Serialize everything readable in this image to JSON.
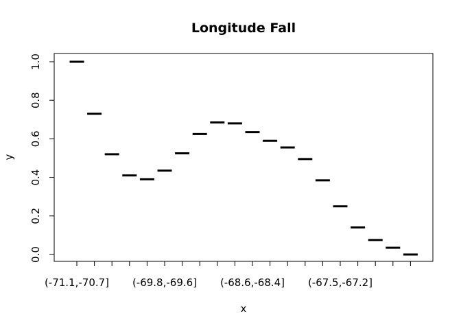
{
  "chart_data": {
    "type": "bar",
    "title": "Longitude Fall",
    "xlabel": "x",
    "ylabel": "y",
    "ylim": [
      -0.04,
      1.04
    ],
    "yticks": [
      0.0,
      0.2,
      0.4,
      0.6,
      0.8,
      1.0
    ],
    "ytick_labels": [
      "0.0",
      "0.2",
      "0.4",
      "0.6",
      "0.8",
      "1.0"
    ],
    "categories": [
      "(-71.1,-70.7]",
      "",
      "",
      "",
      "",
      "(-69.8,-69.6]",
      "",
      "",
      "",
      "",
      "(-68.6,-68.4]",
      "",
      "",
      "",
      "",
      "(-67.5,-67.2]",
      "",
      "",
      "",
      ""
    ],
    "values": [
      1.0,
      0.73,
      0.52,
      0.41,
      0.39,
      0.435,
      0.525,
      0.625,
      0.685,
      0.68,
      0.635,
      0.59,
      0.555,
      0.495,
      0.385,
      0.25,
      0.14,
      0.075,
      0.035,
      0.0
    ],
    "colors": {
      "marks": "#000000",
      "axis": "#000000",
      "background": "#ffffff"
    }
  }
}
